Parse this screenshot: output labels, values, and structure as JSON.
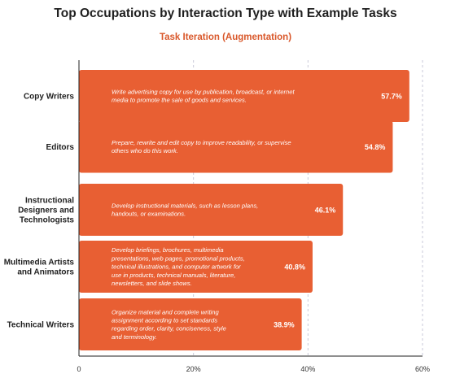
{
  "chart_data": {
    "type": "bar",
    "orientation": "horizontal",
    "title": "Top Occupations by Interaction Type with Example Tasks",
    "subtitle": "Task Iteration (Augmentation)",
    "xlabel": "",
    "ylabel": "",
    "xlim": [
      0,
      60
    ],
    "xticks": [
      "0",
      "20%",
      "40%",
      "60%"
    ],
    "xtick_values": [
      0,
      20,
      40,
      60
    ],
    "grid": "vertical dashed",
    "bar_color": "#e85f33",
    "categories": [
      "Copy Writers",
      "Editors",
      "Instructional Designers and Technologists",
      "Multimedia Artists and Animators",
      "Technical Writers"
    ],
    "category_lines": [
      [
        "Copy Writers"
      ],
      [
        "Editors"
      ],
      [
        "Instructional",
        "Designers and",
        "Technologists"
      ],
      [
        "Multimedia Artists",
        "and Animators"
      ],
      [
        "Technical Writers"
      ]
    ],
    "values": [
      57.7,
      54.8,
      46.1,
      40.8,
      38.9
    ],
    "value_labels": [
      "57.7%",
      "54.8%",
      "46.1%",
      "40.8%",
      "38.9%"
    ],
    "tasks": [
      [
        "Write advertising copy for use by publication, broadcast, or internet",
        "media to promote the sale of goods and services."
      ],
      [
        "Prepare, rewrite and edit copy to improve readability, or supervise",
        "others who do this work."
      ],
      [
        "Develop instructional materials, such as lesson plans,",
        "handouts, or examinations."
      ],
      [
        "Develop briefings, brochures, multimedia",
        "presentations, web pages, promotional products,",
        "technical illustrations, and computer artwork for",
        "use in products, technical manuals, literature,",
        "newsletters, and slide shows."
      ],
      [
        "Organize material and complete writing",
        "assignment according to set standards",
        "regarding order, clarity, conciseness, style",
        "and terminology."
      ]
    ]
  }
}
